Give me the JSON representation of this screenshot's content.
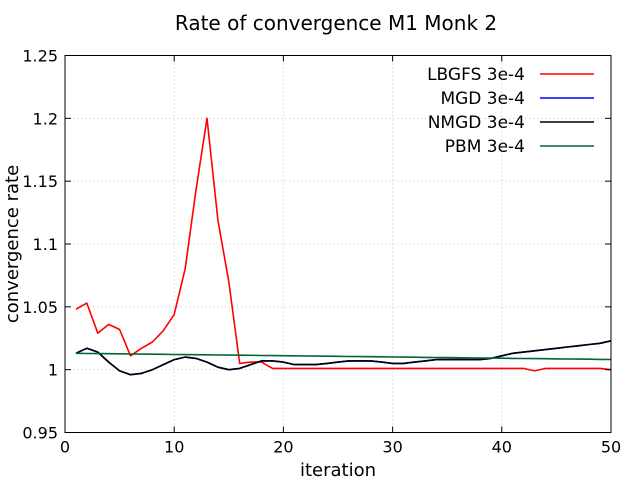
{
  "chart_data": {
    "type": "line",
    "title": "Rate of convergence M1 Monk 2",
    "xlabel": "iteration",
    "ylabel": "convergence rate",
    "xlim": [
      0,
      50
    ],
    "ylim": [
      0.95,
      1.25
    ],
    "xticks": [
      0,
      10,
      20,
      30,
      40,
      50
    ],
    "xtick_labels": [
      "0",
      "10",
      "20",
      "30",
      "40",
      "50"
    ],
    "yticks": [
      0.95,
      1.0,
      1.05,
      1.1,
      1.15,
      1.2,
      1.25
    ],
    "ytick_labels": [
      "0.95",
      "1",
      "1.05",
      "1.1",
      "1.15",
      "1.2",
      "1.25"
    ],
    "grid": true,
    "legend_position": "top-right",
    "x": [
      1,
      2,
      3,
      4,
      5,
      6,
      7,
      8,
      9,
      10,
      11,
      12,
      13,
      14,
      15,
      16,
      17,
      18,
      19,
      20,
      21,
      22,
      23,
      24,
      25,
      26,
      27,
      28,
      29,
      30,
      31,
      32,
      33,
      34,
      35,
      36,
      37,
      38,
      39,
      40,
      41,
      42,
      43,
      44,
      45,
      46,
      47,
      48,
      49,
      50
    ],
    "series": [
      {
        "name": "LBGFS 3e-4",
        "color": "#ff0000",
        "values": [
          1.048,
          1.053,
          1.029,
          1.036,
          1.032,
          1.011,
          1.017,
          1.022,
          1.031,
          1.044,
          1.08,
          1.143,
          1.2,
          1.119,
          1.07,
          1.005,
          1.006,
          1.006,
          1.001,
          1.001,
          1.001,
          1.001,
          1.001,
          1.001,
          1.001,
          1.001,
          1.001,
          1.001,
          1.001,
          1.001,
          1.001,
          1.001,
          1.001,
          1.001,
          1.001,
          1.001,
          1.001,
          1.001,
          1.001,
          1.001,
          1.001,
          1.001,
          0.999,
          1.001,
          1.001,
          1.001,
          1.001,
          1.001,
          1.001,
          1.0
        ]
      },
      {
        "name": "MGD 3e-4",
        "color": "#0000ff",
        "values": [
          1.013,
          1.017,
          1.014,
          1.006,
          0.999,
          0.996,
          0.997,
          1.0,
          1.004,
          1.008,
          1.01,
          1.009,
          1.006,
          1.002,
          1.0,
          1.001,
          1.004,
          1.007,
          1.007,
          1.006,
          1.004,
          1.004,
          1.004,
          1.005,
          1.006,
          1.007,
          1.007,
          1.007,
          1.006,
          1.005,
          1.005,
          1.006,
          1.007,
          1.008,
          1.008,
          1.008,
          1.008,
          1.008,
          1.009,
          1.011,
          1.013,
          1.014,
          1.015,
          1.016,
          1.017,
          1.018,
          1.019,
          1.02,
          1.021,
          1.023
        ]
      },
      {
        "name": "NMGD 3e-4",
        "color": "#000000",
        "values": [
          1.013,
          1.017,
          1.014,
          1.006,
          0.999,
          0.996,
          0.997,
          1.0,
          1.004,
          1.008,
          1.01,
          1.009,
          1.006,
          1.002,
          1.0,
          1.001,
          1.004,
          1.007,
          1.007,
          1.006,
          1.004,
          1.004,
          1.004,
          1.005,
          1.006,
          1.007,
          1.007,
          1.007,
          1.006,
          1.005,
          1.005,
          1.006,
          1.007,
          1.008,
          1.008,
          1.008,
          1.008,
          1.008,
          1.009,
          1.011,
          1.013,
          1.014,
          1.015,
          1.016,
          1.017,
          1.018,
          1.019,
          1.02,
          1.021,
          1.023
        ]
      },
      {
        "name": "PBM 3e-4",
        "color": "#006633",
        "values": [
          1.013,
          1.0129,
          1.0128,
          1.0127,
          1.0126,
          1.0125,
          1.0124,
          1.0123,
          1.0122,
          1.0121,
          1.012,
          1.0119,
          1.0118,
          1.0117,
          1.0116,
          1.0115,
          1.0114,
          1.0113,
          1.0112,
          1.0111,
          1.011,
          1.0109,
          1.0108,
          1.0107,
          1.0106,
          1.0105,
          1.0104,
          1.0103,
          1.0102,
          1.0101,
          1.01,
          1.0099,
          1.0098,
          1.0097,
          1.0096,
          1.0095,
          1.0094,
          1.0093,
          1.0092,
          1.0091,
          1.009,
          1.0089,
          1.0088,
          1.0087,
          1.0086,
          1.0085,
          1.0084,
          1.0083,
          1.0082,
          1.0081
        ]
      }
    ]
  }
}
